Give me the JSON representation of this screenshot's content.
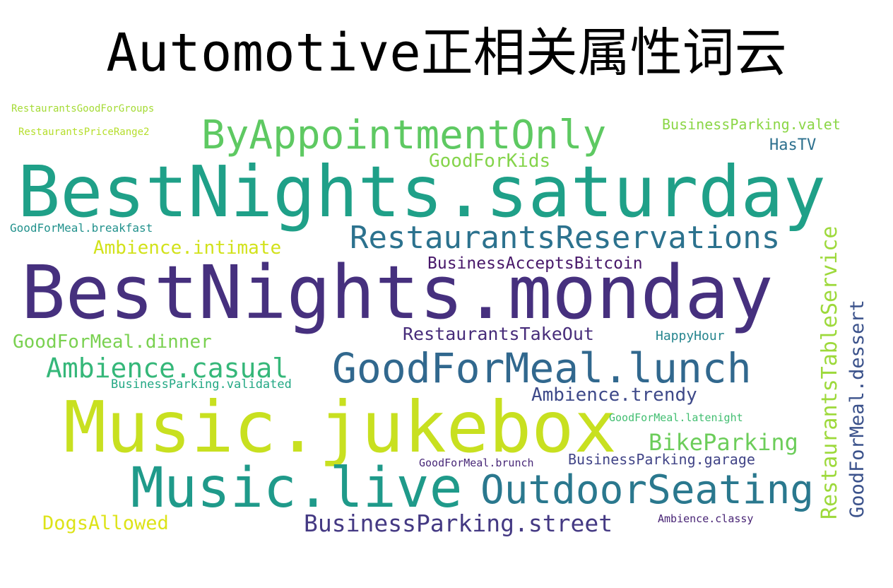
{
  "chart_data": {
    "type": "wordcloud",
    "title": "Automotive正相关属性词云",
    "words": [
      {
        "text": "BestNights.monday",
        "weight": 100,
        "color": "#46307e"
      },
      {
        "text": "BestNights.saturday",
        "weight": 95,
        "color": "#1fa088"
      },
      {
        "text": "Music.jukebox",
        "weight": 90,
        "color": "#c8e020"
      },
      {
        "text": "Music.live",
        "weight": 70,
        "color": "#1f9a8a"
      },
      {
        "text": "OutdoorSeating",
        "weight": 55,
        "color": "#2a788e"
      },
      {
        "text": "GoodForMeal.lunch",
        "weight": 54,
        "color": "#31688e"
      },
      {
        "text": "ByAppointmentOnly",
        "weight": 50,
        "color": "#5ec962"
      },
      {
        "text": "RestaurantsReservations",
        "weight": 42,
        "color": "#2c728e"
      },
      {
        "text": "Ambience.casual",
        "weight": 35,
        "color": "#35b779"
      },
      {
        "text": "BusinessParking.street",
        "weight": 34,
        "color": "#443983"
      },
      {
        "text": "BikeParking",
        "weight": 30,
        "color": "#6ccd5a"
      },
      {
        "text": "RestaurantsTableService",
        "weight": 30,
        "color": "#9dd93b"
      },
      {
        "text": "GoodForMeal.dessert",
        "weight": 30,
        "color": "#3b528b"
      },
      {
        "text": "Ambience.trendy",
        "weight": 26,
        "color": "#3e4989"
      },
      {
        "text": "DogsAllowed",
        "weight": 26,
        "color": "#dde318"
      },
      {
        "text": "GoodForMeal.dinner",
        "weight": 25,
        "color": "#7ad151"
      },
      {
        "text": "GoodForKids",
        "weight": 25,
        "color": "#84d44b"
      },
      {
        "text": "Ambience.intimate",
        "weight": 25,
        "color": "#d2e21b"
      },
      {
        "text": "RestaurantsTakeOut",
        "weight": 24,
        "color": "#472c7a"
      },
      {
        "text": "BusinessAcceptsBitcoin",
        "weight": 22,
        "color": "#48186a"
      },
      {
        "text": "HasTV",
        "weight": 20,
        "color": "#2d708e"
      },
      {
        "text": "BusinessParking.valet",
        "weight": 18,
        "color": "#8bd646"
      },
      {
        "text": "BusinessParking.garage",
        "weight": 18,
        "color": "#414487"
      },
      {
        "text": "HappyHour",
        "weight": 17,
        "color": "#25858e"
      },
      {
        "text": "BusinessParking.validated",
        "weight": 15,
        "color": "#22a884"
      },
      {
        "text": "GoodForMeal.breakfast",
        "weight": 15,
        "color": "#21918c"
      },
      {
        "text": "GoodForMeal.latenight",
        "weight": 14,
        "color": "#42be71"
      },
      {
        "text": "GoodForMeal.brunch",
        "weight": 14,
        "color": "#482878"
      },
      {
        "text": "Ambience.classy",
        "weight": 13,
        "color": "#482475"
      },
      {
        "text": "RestaurantsGoodForGroups",
        "weight": 12,
        "color": "#a5db36"
      },
      {
        "text": "RestaurantsPriceRange2",
        "weight": 12,
        "color": "#b5de2b"
      }
    ]
  }
}
